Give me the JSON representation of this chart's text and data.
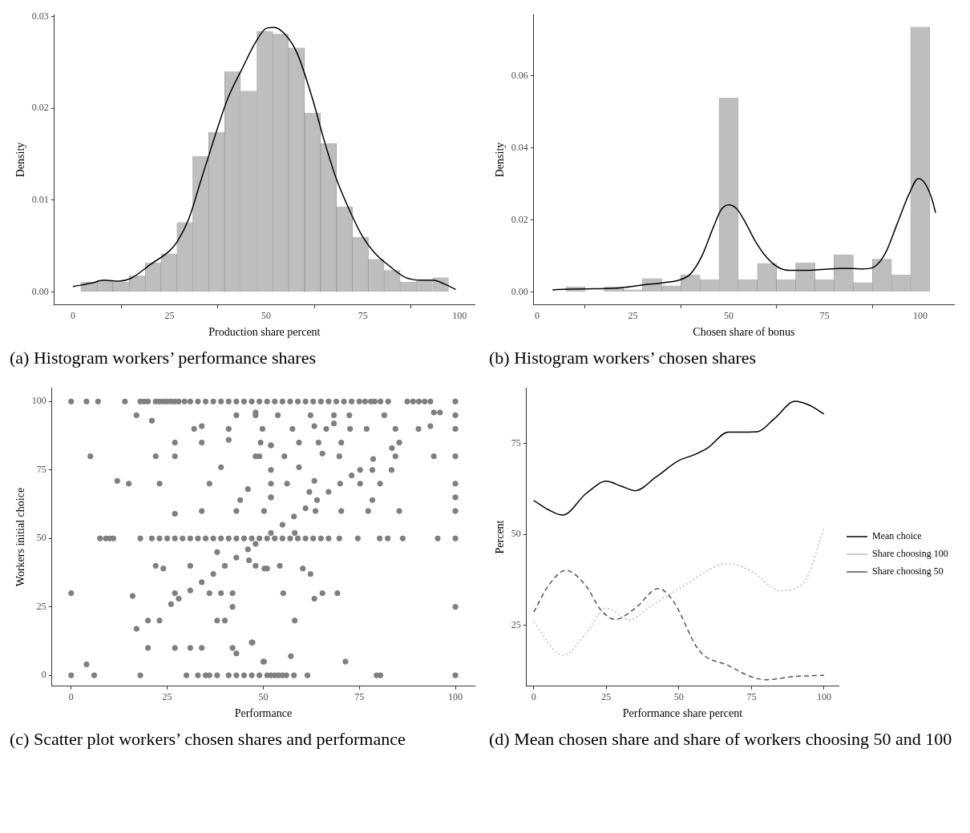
{
  "chart_data": [
    {
      "type": "histogram",
      "title": "(a) Histogram workers’ performance shares",
      "xlabel": "Production share percent",
      "ylabel": "Density",
      "color": "#bebebe",
      "bins": [
        2.0,
        6.2,
        10.4,
        14.6,
        18.7,
        22.8,
        26.9,
        31.0,
        35.1,
        39.2,
        43.4,
        47.6,
        51.7,
        55.8,
        59.9,
        64.1,
        68.2,
        72.4,
        76.4,
        80.5,
        84.7,
        88.8,
        93.0,
        97.2
      ],
      "values": [
        0.0011,
        0.0013,
        0.0011,
        0.0018,
        0.0032,
        0.0042,
        0.0076,
        0.0148,
        0.0174,
        0.024,
        0.0219,
        0.0284,
        0.0281,
        0.0266,
        0.0195,
        0.0162,
        0.0093,
        0.006,
        0.0036,
        0.0024,
        0.0011,
        0.0013,
        0.0016
      ],
      "series": [
        {
          "type": "line",
          "color": "#000000",
          "x": [
            0,
            5,
            8,
            12,
            15,
            20,
            25,
            27,
            30,
            33,
            36,
            40,
            44,
            47,
            50,
            52,
            55,
            58,
            62,
            65,
            68,
            72,
            75,
            78,
            82,
            86,
            90,
            93,
            96,
            99
          ],
          "values": [
            0.0006,
            0.001,
            0.0013,
            0.0012,
            0.0015,
            0.003,
            0.0045,
            0.0055,
            0.008,
            0.012,
            0.016,
            0.021,
            0.0245,
            0.027,
            0.0287,
            0.0288,
            0.028,
            0.026,
            0.021,
            0.0165,
            0.0125,
            0.0085,
            0.006,
            0.0043,
            0.0028,
            0.0016,
            0.0013,
            0.0013,
            0.0009,
            0.0003
          ]
        }
      ],
      "xlim": [
        -4.8,
        103.9
      ],
      "ylim": [
        -0.0014,
        0.0302
      ],
      "xticks": [
        0,
        25,
        50,
        75,
        100
      ],
      "yticks": [
        {
          "value": 0,
          "label": "0.00"
        },
        {
          "value": 0.01,
          "label": "0.01"
        },
        {
          "value": 0.02,
          "label": "0.02"
        },
        {
          "value": 0.03,
          "label": "0.03"
        }
      ]
    },
    {
      "type": "histogram",
      "title": "(b) Histogram workers’ chosen shares",
      "xlabel": "Chosen share of bonus",
      "ylabel": "Density",
      "color": "#bebebe",
      "bins": [
        7.5,
        12.5,
        17.5,
        22.5,
        27.5,
        32.5,
        37.5,
        42.5,
        47.5,
        52.5,
        57.5,
        62.5,
        67.5,
        72.5,
        77.5,
        82.5,
        87.5,
        92.5,
        97.5,
        102.5
      ],
      "values": [
        0.0015,
        null,
        0.0015,
        0.0007,
        0.0038,
        0.0018,
        0.0048,
        0.0035,
        0.0539,
        0.0035,
        0.008,
        0.0035,
        0.0082,
        0.0035,
        0.0104,
        0.0027,
        0.0092,
        0.0048,
        0.0736
      ],
      "series": [
        {
          "type": "line",
          "color": "#000000",
          "x": [
            4,
            8,
            15,
            22,
            28,
            33,
            37,
            40,
            43,
            46,
            48,
            50,
            52,
            54,
            57,
            60,
            63,
            66,
            70,
            75,
            80,
            85,
            88,
            91,
            94,
            97,
            99.5,
            101,
            103,
            104
          ],
          "values": [
            0.0006,
            0.0008,
            0.0009,
            0.0012,
            0.002,
            0.0026,
            0.0033,
            0.005,
            0.01,
            0.018,
            0.0228,
            0.0242,
            0.0232,
            0.02,
            0.014,
            0.0095,
            0.0068,
            0.006,
            0.006,
            0.0063,
            0.0066,
            0.0064,
            0.007,
            0.011,
            0.019,
            0.027,
            0.0315,
            0.0305,
            0.026,
            0.022
          ]
        }
      ],
      "xlim": [
        -0.9,
        108.8
      ],
      "ylim": [
        -0.0036,
        0.077
      ],
      "xticks": [
        0,
        25,
        50,
        75,
        100
      ],
      "yticks": [
        {
          "value": 0,
          "label": "0.00"
        },
        {
          "value": 0.02,
          "label": "0.02"
        },
        {
          "value": 0.04,
          "label": "0.04"
        },
        {
          "value": 0.06,
          "label": "0.06"
        }
      ]
    },
    {
      "type": "scatter",
      "title": "(c) Scatter plot workers’ chosen shares and performance",
      "xlabel": "Performance",
      "ylabel": "Workers initial choice",
      "marker": "circle",
      "series": [
        {
          "color": "#7f7f7f",
          "x": [
            0,
            4,
            5,
            12,
            15,
            17,
            21,
            16,
            17,
            20,
            20,
            22,
            24,
            22,
            23,
            23,
            26,
            27,
            27,
            27,
            27,
            27,
            31,
            31,
            32,
            34,
            34,
            34,
            34,
            36,
            36,
            38,
            38,
            39,
            39,
            40,
            41,
            41,
            42,
            42,
            42,
            43,
            43,
            43,
            44,
            46,
            47,
            48,
            50,
            51,
            48,
            49,
            52,
            52,
            48,
            53.8,
            62.3,
            68.4,
            72.4,
            81.5,
            94.4,
            96,
            100,
            49.8,
            57.6,
            63.3,
            66.4,
            68.4,
            72.6,
            76.9,
            84.4,
            90.4,
            93.5,
            100,
            49.3,
            52,
            59.3,
            64.4,
            70.3,
            83.5,
            85.4,
            48,
            55.5,
            65.4,
            69.8,
            78.6,
            84.4,
            94.4,
            100,
            52,
            59.3,
            75.2,
            78.4,
            83.4,
            52,
            56.2,
            63.3,
            75.2,
            80.4,
            100,
            52,
            62,
            78.4,
            100,
            50.2,
            63.6,
            70.3,
            77.3,
            85.4,
            100,
            58.2,
            46.3,
            50.3,
            54.3,
            60.3,
            62.3,
            55.2,
            65.4,
            69.3,
            63.3,
            100,
            58.2,
            47.2,
            57.2,
            50.2,
            71.4
          ],
          "values": [
            30,
            4,
            80,
            71,
            70,
            95,
            93,
            29,
            17,
            20,
            10,
            40,
            39,
            80,
            70,
            20,
            26,
            85,
            80,
            59,
            30,
            10,
            40,
            10,
            90,
            91,
            85,
            60,
            10,
            70,
            30,
            45,
            20,
            76,
            30,
            20,
            90,
            86,
            30,
            25,
            10,
            8,
            95,
            60,
            64,
            68,
            12,
            40,
            5,
            39,
            96,
            80,
            84,
            65,
            95,
            95,
            95,
            95,
            95,
            95,
            96,
            96,
            95,
            90,
            90,
            91,
            90,
            92,
            90,
            90,
            90,
            90,
            91,
            90,
            85,
            84,
            85,
            85,
            85,
            83,
            85,
            80,
            80,
            81,
            80,
            79,
            80,
            80,
            80,
            75,
            76,
            75,
            75,
            75,
            70,
            70,
            71,
            70,
            70,
            70,
            65,
            67,
            64,
            65,
            60,
            60,
            60,
            60,
            60,
            60,
            52,
            42,
            39,
            40,
            39,
            37,
            30,
            30,
            30,
            28,
            25,
            20,
            12,
            7,
            5,
            5
          ]
        },
        {
          "color": "#7f7f7f",
          "x": [
            0,
            4,
            7,
            14,
            18,
            19,
            20,
            22,
            23,
            24,
            25,
            26,
            27,
            28,
            29.5,
            31,
            33,
            35,
            37,
            39,
            41,
            43,
            45,
            47,
            49,
            51,
            53,
            55,
            57,
            59,
            61,
            63,
            65,
            67,
            69,
            71,
            73,
            75,
            76.5,
            78,
            79,
            80.5,
            82.5,
            87.5,
            89,
            90.5,
            92,
            93.5,
            100
          ],
          "values": [
            100,
            100,
            100,
            100,
            100,
            100,
            100,
            100,
            100,
            100,
            100,
            100,
            100,
            100,
            100,
            100,
            100,
            100,
            100,
            100,
            100,
            100,
            100,
            100,
            100,
            100,
            100,
            100,
            100,
            100,
            100,
            100,
            100,
            100,
            100,
            100,
            100,
            100,
            100,
            100,
            100,
            100,
            100,
            100,
            100,
            100,
            100,
            100,
            100
          ]
        },
        {
          "color": "#7f7f7f",
          "x": [
            7.5,
            9,
            10,
            11,
            18,
            21,
            23,
            25,
            27,
            29,
            31,
            33,
            35,
            37,
            39,
            41,
            43,
            45,
            47,
            49,
            51,
            53,
            55,
            57,
            59,
            61,
            63,
            65,
            67,
            69.8,
            74.6,
            80.3,
            82.4,
            86.3,
            95.4,
            100
          ],
          "values": [
            50,
            50,
            50,
            50,
            50,
            50,
            50,
            50,
            50,
            50,
            50,
            50,
            50,
            50,
            50,
            50,
            50,
            50,
            50,
            50,
            50,
            50,
            50,
            50,
            50,
            50,
            50,
            50,
            50,
            50,
            50,
            50,
            50,
            50,
            50,
            50
          ]
        },
        {
          "color": "#7f7f7f",
          "x": [
            28,
            31,
            34,
            37,
            40,
            43,
            46,
            48,
            52,
            55,
            58,
            61,
            64,
            67,
            70,
            73
          ],
          "values": [
            28,
            31,
            34,
            37,
            40,
            43,
            46,
            48,
            52,
            55,
            58,
            61,
            64,
            67,
            70,
            73
          ]
        },
        {
          "color": "#7f7f7f",
          "x": [
            0,
            6,
            18,
            30,
            33,
            35,
            36,
            38,
            41,
            43,
            45,
            47,
            49,
            51,
            52,
            53,
            54,
            55,
            56,
            58,
            61.5,
            79.5,
            80.5,
            100
          ],
          "values": [
            0,
            0,
            0,
            0,
            0,
            0,
            0,
            0,
            0,
            0,
            0,
            0,
            0,
            0,
            0,
            0,
            0,
            0,
            0,
            0,
            0,
            0,
            0,
            0
          ]
        }
      ],
      "xlim": [
        -5,
        105
      ],
      "ylim": [
        -4,
        105
      ],
      "xticks": [
        0,
        25,
        50,
        75,
        100
      ],
      "yticks": [
        0,
        25,
        50,
        75,
        100
      ]
    },
    {
      "type": "line",
      "title": "(d) Mean chosen share and share of workers choosing 50 and 100",
      "xlabel": "Performance share percent",
      "ylabel": "Percent",
      "legend": "right",
      "series": [
        {
          "name": "Mean choice",
          "color": "#000000",
          "line_style": "solid",
          "x": [
            0,
            5,
            10,
            18,
            25,
            30,
            35,
            42,
            50,
            55,
            60,
            67,
            72,
            77,
            83,
            90,
            95,
            100
          ],
          "values": [
            59.3,
            56.8,
            55.3,
            61.2,
            64.6,
            63.3,
            62.0,
            65.7,
            70.3,
            71.8,
            73.8,
            78.1,
            78.1,
            78.2,
            81.9,
            86.6,
            85.5,
            83.1
          ]
        },
        {
          "name": "Share choosing 100",
          "color": "#bdbdbd",
          "line_style": "dotted",
          "x": [
            0,
            10,
            18,
            25,
            33,
            40,
            50,
            67,
            75,
            85,
            93,
            100
          ],
          "values": [
            25.8,
            16.7,
            22.8,
            29.7,
            26.5,
            30.1,
            35.0,
            41.9,
            39.8,
            34.5,
            36.6,
            51.8
          ]
        },
        {
          "name": "Share choosing 50",
          "color": "#555555",
          "line_style": "dashed",
          "x": [
            0,
            5,
            11,
            18,
            23,
            28,
            35,
            43,
            48,
            57,
            67,
            75,
            80,
            90,
            100
          ],
          "values": [
            28.6,
            35.8,
            40.1,
            35.8,
            29.3,
            26.6,
            29.7,
            35.1,
            31.7,
            18.0,
            13.9,
            10.8,
            10.0,
            10.9,
            11.2
          ]
        }
      ],
      "xlim": [
        -2.5,
        105
      ],
      "ylim": [
        8.2,
        90.3
      ],
      "xticks": [
        0,
        25,
        50,
        75,
        100
      ],
      "yticks": [
        25,
        50,
        75
      ]
    }
  ]
}
